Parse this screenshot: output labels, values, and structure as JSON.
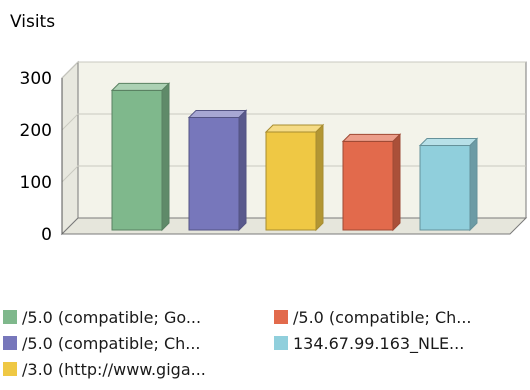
{
  "chart_data": {
    "type": "bar",
    "title": "Visits",
    "categories": [
      "/5.0 (compatible; Go...",
      "/5.0 (compatible; Ch...",
      "/3.0 (http://www.giga...",
      "/5.0 (compatible; Ch...",
      "134.67.99.163_NLE..."
    ],
    "values": [
      280,
      228,
      200,
      182,
      174
    ],
    "colors": [
      "#7fb88c",
      "#7777bb",
      "#efc844",
      "#e26a4c",
      "#90cfdc"
    ],
    "ylim": [
      0,
      300
    ],
    "yticks": [
      "0",
      "100",
      "200",
      "300"
    ],
    "grid": true,
    "legend_position": "bottom"
  }
}
